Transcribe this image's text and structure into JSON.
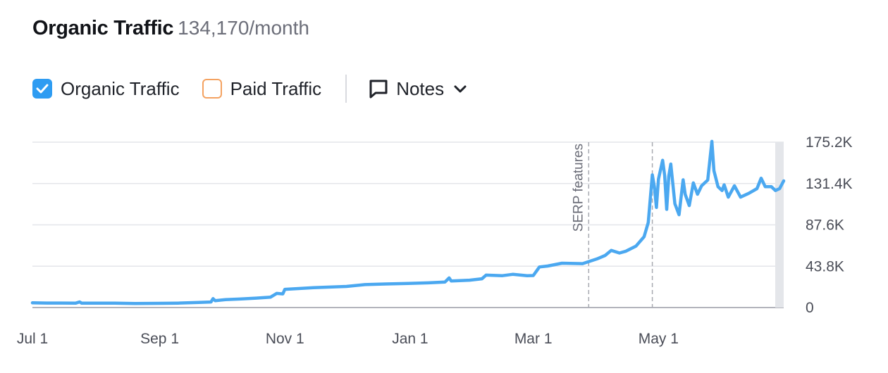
{
  "header": {
    "title": "Organic Traffic",
    "subtitle": "134,170/month"
  },
  "controls": {
    "organic_label": "Organic Traffic",
    "paid_label": "Paid Traffic",
    "notes_label": "Notes",
    "organic_checked": true,
    "paid_checked": false
  },
  "icons": {
    "checkbox": "check-icon",
    "notes": "note-icon",
    "dropdown": "chevron-down-icon"
  },
  "colors": {
    "organic": "#4ba8f0",
    "paid": "#f4a261",
    "checkbox": "#2e9cf2"
  },
  "chart_data": {
    "type": "line",
    "x_ticks": [
      "Sep 1",
      "Nov 1",
      "Jan 1",
      "Mar 1",
      "May 1",
      "Jul 1"
    ],
    "y_ticks": [
      "0",
      "43.8K",
      "87.6K",
      "131.4K",
      "175.2K"
    ],
    "ylim": [
      0,
      175200
    ],
    "xlim": [
      "2023-07-01",
      "2024-07-01"
    ],
    "grid": true,
    "axis_position": "right",
    "annotations": [
      {
        "label": "SERP features",
        "date": "2024-03-28"
      },
      {
        "label": "",
        "date": "2024-04-28"
      }
    ],
    "series": [
      {
        "name": "Organic Traffic",
        "points": [
          [
            "2023-07-01",
            5000
          ],
          [
            "2023-07-08",
            4800
          ],
          [
            "2023-07-15",
            4800
          ],
          [
            "2023-07-22",
            4600
          ],
          [
            "2023-07-24",
            6000
          ],
          [
            "2023-07-25",
            4600
          ],
          [
            "2023-08-01",
            4700
          ],
          [
            "2023-08-10",
            4600
          ],
          [
            "2023-08-20",
            4300
          ],
          [
            "2023-09-01",
            4500
          ],
          [
            "2023-09-10",
            4700
          ],
          [
            "2023-09-20",
            5400
          ],
          [
            "2023-09-26",
            5900
          ],
          [
            "2023-09-27",
            9500
          ],
          [
            "2023-09-28",
            7300
          ],
          [
            "2023-10-03",
            8400
          ],
          [
            "2023-10-10",
            9000
          ],
          [
            "2023-10-18",
            10000
          ],
          [
            "2023-10-25",
            11000
          ],
          [
            "2023-10-28",
            15000
          ],
          [
            "2023-10-31",
            14500
          ],
          [
            "2023-11-01",
            19300
          ],
          [
            "2023-11-15",
            21000
          ],
          [
            "2023-12-01",
            22400
          ],
          [
            "2023-12-10",
            24300
          ],
          [
            "2023-12-20",
            25000
          ],
          [
            "2023-12-31",
            25500
          ],
          [
            "2024-01-10",
            26200
          ],
          [
            "2024-01-18",
            27100
          ],
          [
            "2024-01-20",
            31400
          ],
          [
            "2024-01-21",
            28200
          ],
          [
            "2024-01-30",
            29000
          ],
          [
            "2024-02-05",
            30500
          ],
          [
            "2024-02-07",
            34400
          ],
          [
            "2024-02-15",
            33800
          ],
          [
            "2024-02-20",
            35200
          ],
          [
            "2024-02-27",
            33800
          ],
          [
            "2024-03-01",
            33900
          ],
          [
            "2024-03-04",
            43000
          ],
          [
            "2024-03-08",
            44000
          ],
          [
            "2024-03-15",
            47000
          ],
          [
            "2024-03-25",
            46500
          ],
          [
            "2024-04-01",
            51500
          ],
          [
            "2024-04-05",
            55200
          ],
          [
            "2024-04-08",
            60500
          ],
          [
            "2024-04-12",
            57800
          ],
          [
            "2024-04-15",
            59600
          ],
          [
            "2024-04-20",
            65000
          ],
          [
            "2024-04-24",
            75000
          ],
          [
            "2024-04-26",
            90000
          ],
          [
            "2024-04-28",
            140500
          ],
          [
            "2024-04-29",
            128000
          ],
          [
            "2024-04-30",
            106000
          ],
          [
            "2024-05-01",
            136000
          ],
          [
            "2024-05-03",
            156000
          ],
          [
            "2024-05-04",
            140000
          ],
          [
            "2024-05-05",
            104000
          ],
          [
            "2024-05-06",
            139000
          ],
          [
            "2024-05-07",
            152000
          ],
          [
            "2024-05-09",
            110000
          ],
          [
            "2024-05-11",
            98300
          ],
          [
            "2024-05-13",
            135300
          ],
          [
            "2024-05-14",
            120000
          ],
          [
            "2024-05-16",
            108000
          ],
          [
            "2024-05-18",
            132000
          ],
          [
            "2024-05-20",
            120000
          ],
          [
            "2024-05-22",
            129000
          ],
          [
            "2024-05-25",
            135000
          ],
          [
            "2024-05-27",
            176000
          ],
          [
            "2024-05-28",
            145000
          ],
          [
            "2024-05-30",
            128000
          ],
          [
            "2024-06-01",
            124000
          ],
          [
            "2024-06-02",
            130000
          ],
          [
            "2024-06-04",
            117000
          ],
          [
            "2024-06-07",
            129000
          ],
          [
            "2024-06-10",
            117000
          ],
          [
            "2024-06-14",
            121000
          ],
          [
            "2024-06-18",
            126000
          ],
          [
            "2024-06-20",
            137000
          ],
          [
            "2024-06-22",
            128000
          ],
          [
            "2024-06-25",
            128000
          ],
          [
            "2024-06-27",
            124000
          ],
          [
            "2024-06-29",
            126000
          ],
          [
            "2024-07-01",
            134200
          ]
        ]
      }
    ]
  }
}
